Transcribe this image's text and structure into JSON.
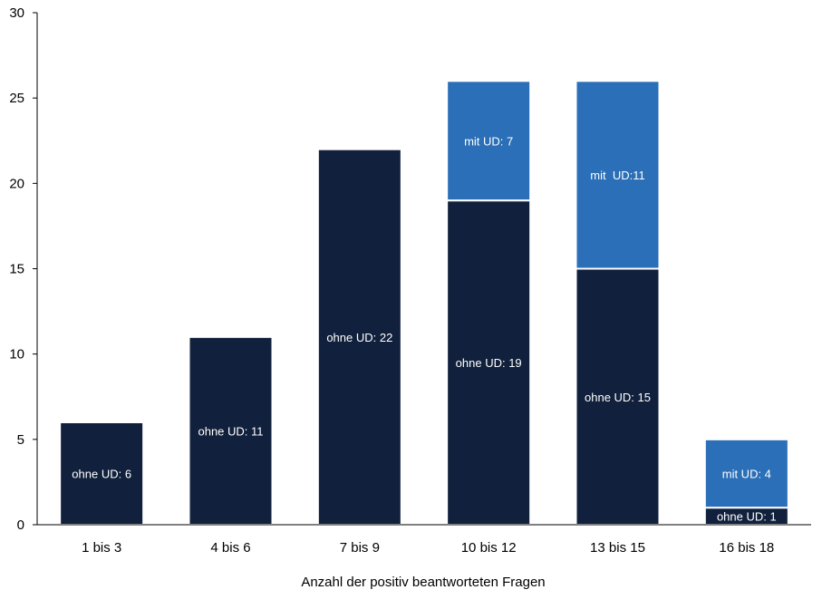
{
  "chart_data": {
    "type": "bar",
    "stacked": true,
    "categories": [
      "1 bis 3",
      "4 bis 6",
      "7 bis 9",
      "10 bis 12",
      "13 bis 15",
      "16 bis 18"
    ],
    "series": [
      {
        "color": "#11203c",
        "values": [
          6,
          11,
          22,
          19,
          15,
          1
        ],
        "labels": [
          "ohne UD: 6",
          "ohne UD: 11",
          "ohne UD: 22",
          "ohne UD: 19",
          "ohne UD: 15",
          "ohne UD: 1"
        ]
      },
      {
        "color": "#2a6fb7",
        "values": [
          0,
          0,
          0,
          7,
          11,
          4
        ],
        "labels": [
          "",
          "",
          "",
          "mit UD: 7",
          "mit  UD:11",
          "mit UD: 4"
        ]
      }
    ],
    "xlabel": "Anzahl der positiv beantworteten Fragen",
    "ylabel": "",
    "ylim": [
      0,
      30
    ],
    "yticks": [
      "0",
      "5",
      "10",
      "15",
      "20",
      "25",
      "30"
    ],
    "grid": false,
    "legend": "none"
  }
}
